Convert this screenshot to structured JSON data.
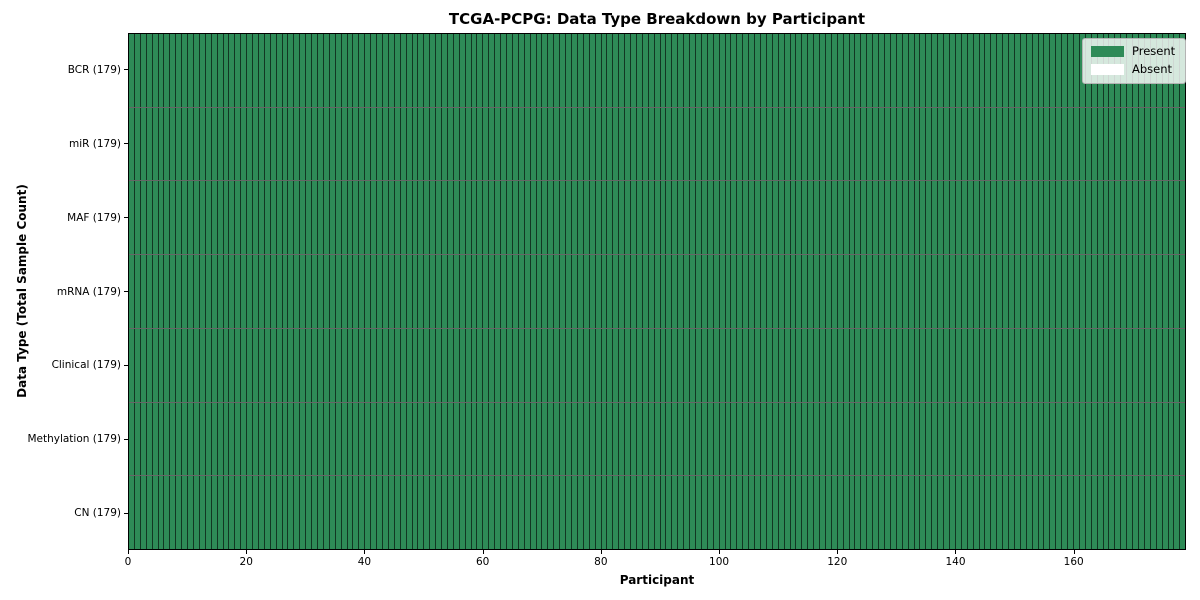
{
  "chart_data": {
    "type": "heatmap",
    "title": "TCGA-PCPG: Data Type Breakdown by Participant",
    "xlabel": "Participant",
    "ylabel": "Data Type (Total Sample Count)",
    "participants": 179,
    "x_range": [
      0,
      179
    ],
    "x_ticks": [
      0,
      20,
      40,
      60,
      80,
      100,
      120,
      140,
      160
    ],
    "rows": [
      {
        "label": "BCR (179)",
        "data_type": "BCR",
        "total": 179,
        "present": 179
      },
      {
        "label": "miR (179)",
        "data_type": "miR",
        "total": 179,
        "present": 179
      },
      {
        "label": "MAF (179)",
        "data_type": "MAF",
        "total": 179,
        "present": 179
      },
      {
        "label": "mRNA (179)",
        "data_type": "mRNA",
        "total": 179,
        "present": 179
      },
      {
        "label": "Clinical (179)",
        "data_type": "Clinical",
        "total": 179,
        "present": 179
      },
      {
        "label": "Methylation (179)",
        "data_type": "Methylation",
        "total": 179,
        "present": 179
      },
      {
        "label": "CN (179)",
        "data_type": "CN",
        "total": 179,
        "present": 179
      }
    ],
    "legend": {
      "position": "upper right",
      "entries": [
        {
          "label": "Present",
          "color": "#2e8b57"
        },
        {
          "label": "Absent",
          "color": "#ffffff"
        }
      ]
    },
    "colors": {
      "present": "#2e8b57",
      "absent": "#ffffff",
      "cell_edge": "rgba(0,0,0,0.6)",
      "axis": "#000000"
    },
    "grid": "cell-borders",
    "legend_labels": {
      "present": "Present",
      "absent": "Absent"
    }
  }
}
